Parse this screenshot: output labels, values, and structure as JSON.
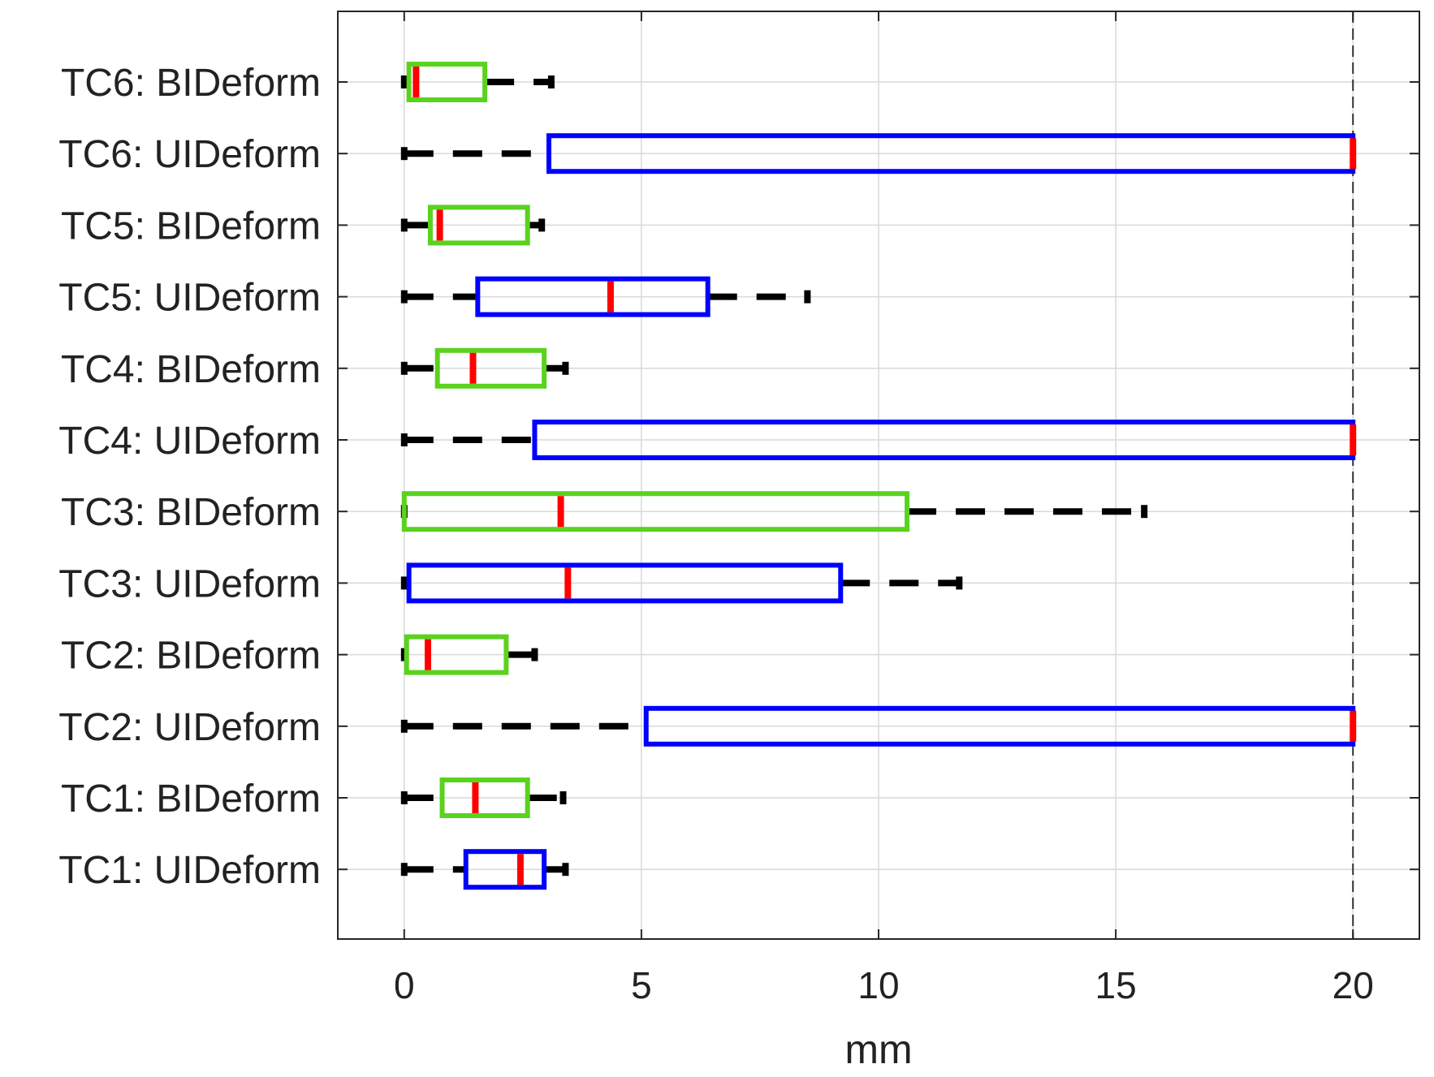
{
  "chart_data": {
    "type": "boxplot",
    "orientation": "horizontal",
    "xlabel": "mm",
    "ylabel": "",
    "title": "",
    "xlim": [
      -1.4,
      21.4
    ],
    "xticks": [
      0,
      5,
      10,
      15,
      20
    ],
    "grid": true,
    "reference_line": {
      "x": 20,
      "style": "dashed"
    },
    "colors": {
      "UIDeform": "#0000ff",
      "BIDeform": "#5ad21e",
      "median": "#ff0000",
      "whisker": "#000000",
      "grid": "#d9d9d9"
    },
    "boxes": [
      {
        "label": "TC6: BIDeform",
        "group": "BIDeform",
        "whisker_low": 0,
        "q1": 0.1,
        "median": 0.25,
        "q3": 1.7,
        "whisker_high": 3.1
      },
      {
        "label": "TC6: UIDeform",
        "group": "UIDeform",
        "whisker_low": 0,
        "q1": 3.05,
        "median": 20,
        "q3": 20,
        "whisker_high": 20
      },
      {
        "label": "TC5: BIDeform",
        "group": "BIDeform",
        "whisker_low": 0,
        "q1": 0.55,
        "median": 0.75,
        "q3": 2.6,
        "whisker_high": 2.9
      },
      {
        "label": "TC5: UIDeform",
        "group": "UIDeform",
        "whisker_low": 0,
        "q1": 1.55,
        "median": 4.35,
        "q3": 6.4,
        "whisker_high": 8.5
      },
      {
        "label": "TC4: BIDeform",
        "group": "BIDeform",
        "whisker_low": 0,
        "q1": 0.7,
        "median": 1.45,
        "q3": 2.95,
        "whisker_high": 3.4
      },
      {
        "label": "TC4: UIDeform",
        "group": "UIDeform",
        "whisker_low": 0,
        "q1": 2.75,
        "median": 20,
        "q3": 20,
        "whisker_high": 20
      },
      {
        "label": "TC3: BIDeform",
        "group": "BIDeform",
        "whisker_low": 0,
        "q1": 0,
        "median": 3.3,
        "q3": 10.6,
        "whisker_high": 15.6
      },
      {
        "label": "TC3: UIDeform",
        "group": "UIDeform",
        "whisker_low": 0,
        "q1": 0.1,
        "median": 3.45,
        "q3": 9.2,
        "whisker_high": 11.7
      },
      {
        "label": "TC2: BIDeform",
        "group": "BIDeform",
        "whisker_low": 0,
        "q1": 0.05,
        "median": 0.5,
        "q3": 2.15,
        "whisker_high": 2.75
      },
      {
        "label": "TC2: UIDeform",
        "group": "UIDeform",
        "whisker_low": 0,
        "q1": 5.1,
        "median": 20,
        "q3": 20,
        "whisker_high": 20
      },
      {
        "label": "TC1: BIDeform",
        "group": "BIDeform",
        "whisker_low": 0,
        "q1": 0.8,
        "median": 1.5,
        "q3": 2.6,
        "whisker_high": 3.35
      },
      {
        "label": "TC1: UIDeform",
        "group": "UIDeform",
        "whisker_low": 0,
        "q1": 1.3,
        "median": 2.45,
        "q3": 2.95,
        "whisker_high": 3.4
      }
    ]
  }
}
